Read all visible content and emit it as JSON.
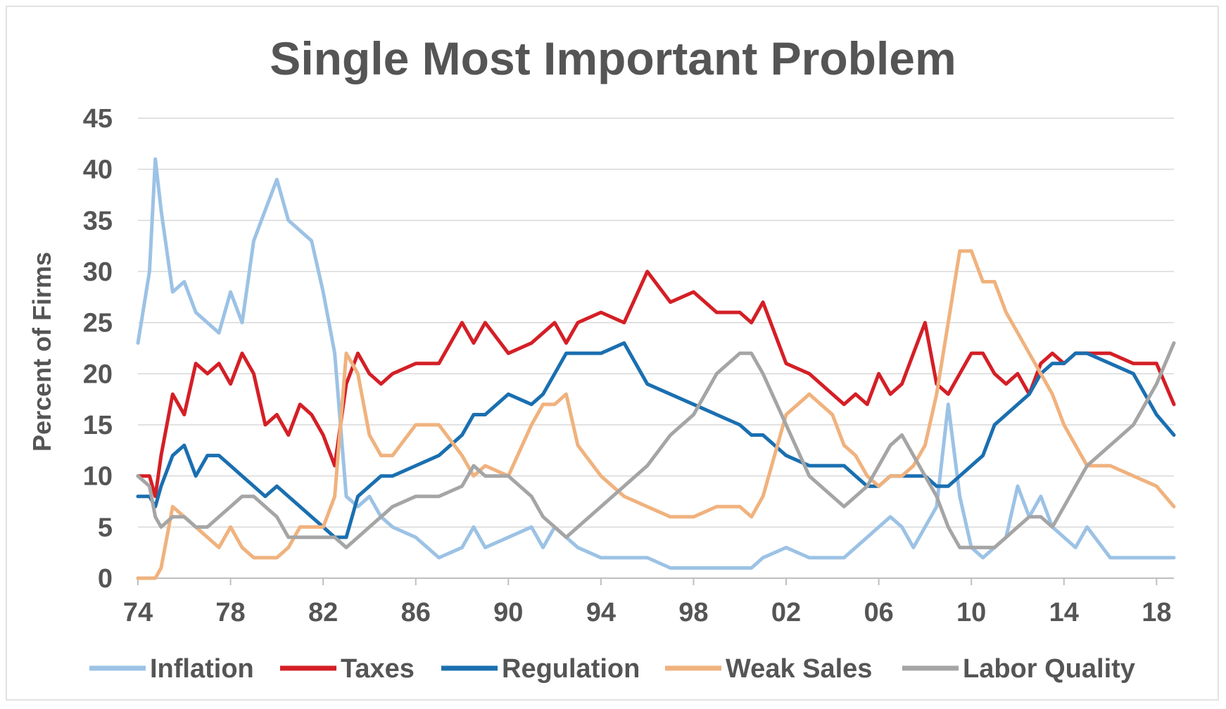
{
  "chart_data": {
    "type": "line",
    "title": "Single Most Important Problem",
    "xlabel": "",
    "ylabel": "Percent of Firms",
    "x_tick_labels": [
      "74",
      "78",
      "82",
      "86",
      "90",
      "94",
      "98",
      "02",
      "06",
      "10",
      "14",
      "18"
    ],
    "x_tick_years": [
      1974,
      1978,
      1982,
      1986,
      1990,
      1994,
      1998,
      2002,
      2006,
      2010,
      2014,
      2018
    ],
    "xlim": [
      1974,
      2018.75
    ],
    "ylim": [
      0,
      45
    ],
    "y_ticks": [
      0,
      5,
      10,
      15,
      20,
      25,
      30,
      35,
      40,
      45
    ],
    "grid": "horizontal",
    "legend_position": "bottom",
    "series": [
      {
        "name": "Inflation",
        "color": "#9cc2e5",
        "x": [
          1974,
          1974.5,
          1974.75,
          1975,
          1975.5,
          1976,
          1976.5,
          1977,
          1977.5,
          1978,
          1978.5,
          1979,
          1979.5,
          1980,
          1980.5,
          1981,
          1981.5,
          1982,
          1982.5,
          1983,
          1983.5,
          1984,
          1984.5,
          1985,
          1986,
          1987,
          1988,
          1988.5,
          1989,
          1990,
          1991,
          1991.5,
          1992,
          1992.5,
          1993,
          1994,
          1995,
          1996,
          1997,
          1998,
          1999,
          2000,
          2000.5,
          2001,
          2002,
          2003,
          2004,
          2004.5,
          2005,
          2005.5,
          2006,
          2006.5,
          2007,
          2007.5,
          2008,
          2008.5,
          2009,
          2009.5,
          2010,
          2010.5,
          2011,
          2011.5,
          2012,
          2012.5,
          2013,
          2013.5,
          2014,
          2014.5,
          2015,
          2016,
          2017,
          2018,
          2018.75
        ],
        "y": [
          23,
          30,
          41,
          36,
          28,
          29,
          26,
          25,
          24,
          28,
          25,
          33,
          36,
          39,
          35,
          34,
          33,
          28,
          22,
          8,
          7,
          8,
          6,
          5,
          4,
          2,
          3,
          5,
          3,
          4,
          5,
          3,
          5,
          4,
          3,
          2,
          2,
          2,
          1,
          1,
          1,
          1,
          1,
          2,
          3,
          2,
          2,
          2,
          3,
          4,
          5,
          6,
          5,
          3,
          5,
          7,
          17,
          8,
          3,
          2,
          3,
          4,
          9,
          6,
          8,
          5,
          4,
          3,
          5,
          2,
          2,
          2,
          2
        ]
      },
      {
        "name": "Taxes",
        "color": "#d41f26",
        "x": [
          1974,
          1974.5,
          1974.75,
          1975,
          1975.5,
          1976,
          1976.5,
          1977,
          1977.5,
          1978,
          1978.5,
          1979,
          1979.5,
          1980,
          1980.5,
          1981,
          1981.5,
          1982,
          1982.5,
          1983,
          1983.5,
          1984,
          1984.5,
          1985,
          1986,
          1987,
          1988,
          1988.5,
          1989,
          1990,
          1991,
          1991.5,
          1992,
          1992.5,
          1993,
          1994,
          1995,
          1996,
          1997,
          1998,
          1999,
          2000,
          2000.5,
          2001,
          2002,
          2003,
          2004,
          2004.5,
          2005,
          2005.5,
          2006,
          2006.5,
          2007,
          2007.5,
          2008,
          2008.5,
          2009,
          2009.5,
          2010,
          2010.5,
          2011,
          2011.5,
          2012,
          2012.5,
          2013,
          2013.5,
          2014,
          2014.5,
          2015,
          2016,
          2017,
          2018,
          2018.75
        ],
        "y": [
          10,
          10,
          8,
          12,
          18,
          16,
          21,
          20,
          21,
          19,
          22,
          20,
          15,
          16,
          14,
          17,
          16,
          14,
          11,
          19,
          22,
          20,
          19,
          20,
          21,
          21,
          25,
          23,
          25,
          22,
          23,
          24,
          25,
          23,
          25,
          26,
          25,
          30,
          27,
          28,
          26,
          26,
          25,
          27,
          21,
          20,
          18,
          17,
          18,
          17,
          20,
          18,
          19,
          22,
          25,
          19,
          18,
          20,
          22,
          22,
          20,
          19,
          20,
          18,
          21,
          22,
          21,
          22,
          22,
          22,
          21,
          21,
          17
        ]
      },
      {
        "name": "Regulation",
        "color": "#1a6fb0",
        "x": [
          1974,
          1974.5,
          1974.75,
          1975,
          1975.5,
          1976,
          1976.5,
          1977,
          1977.5,
          1978,
          1978.5,
          1979,
          1979.5,
          1980,
          1980.5,
          1981,
          1981.5,
          1982,
          1982.5,
          1983,
          1983.5,
          1984,
          1984.5,
          1985,
          1986,
          1987,
          1988,
          1988.5,
          1989,
          1990,
          1991,
          1991.5,
          1992,
          1992.5,
          1993,
          1994,
          1995,
          1996,
          1997,
          1998,
          1999,
          2000,
          2000.5,
          2001,
          2002,
          2003,
          2004,
          2004.5,
          2005,
          2005.5,
          2006,
          2006.5,
          2007,
          2007.5,
          2008,
          2008.5,
          2009,
          2009.5,
          2010,
          2010.5,
          2011,
          2011.5,
          2012,
          2012.5,
          2013,
          2013.5,
          2014,
          2014.5,
          2015,
          2016,
          2017,
          2018,
          2018.75
        ],
        "y": [
          8,
          8,
          7,
          9,
          12,
          13,
          10,
          12,
          12,
          11,
          10,
          9,
          8,
          9,
          8,
          7,
          6,
          5,
          4,
          4,
          8,
          9,
          10,
          10,
          11,
          12,
          14,
          16,
          16,
          18,
          17,
          18,
          20,
          22,
          22,
          22,
          23,
          19,
          18,
          17,
          16,
          15,
          14,
          14,
          12,
          11,
          11,
          11,
          10,
          9,
          9,
          10,
          10,
          10,
          10,
          9,
          9,
          10,
          11,
          12,
          15,
          16,
          17,
          18,
          20,
          21,
          21,
          22,
          22,
          21,
          20,
          16,
          14
        ]
      },
      {
        "name": "Weak Sales",
        "color": "#f0b27e",
        "x": [
          1974,
          1974.5,
          1974.75,
          1975,
          1975.5,
          1976,
          1976.5,
          1977,
          1977.5,
          1978,
          1978.5,
          1979,
          1979.5,
          1980,
          1980.5,
          1981,
          1981.5,
          1982,
          1982.5,
          1983,
          1983.5,
          1984,
          1984.5,
          1985,
          1986,
          1987,
          1988,
          1988.5,
          1989,
          1990,
          1991,
          1991.5,
          1992,
          1992.5,
          1993,
          1994,
          1995,
          1996,
          1997,
          1998,
          1999,
          2000,
          2000.5,
          2001,
          2002,
          2003,
          2004,
          2004.5,
          2005,
          2005.5,
          2006,
          2006.5,
          2007,
          2007.5,
          2008,
          2008.5,
          2009,
          2009.5,
          2010,
          2010.5,
          2011,
          2011.5,
          2012,
          2012.5,
          2013,
          2013.5,
          2014,
          2014.5,
          2015,
          2016,
          2017,
          2018,
          2018.75
        ],
        "y": [
          0,
          0,
          0,
          1,
          7,
          6,
          5,
          4,
          3,
          5,
          3,
          2,
          2,
          2,
          3,
          5,
          5,
          5,
          8,
          22,
          20,
          14,
          12,
          12,
          15,
          15,
          12,
          10,
          11,
          10,
          15,
          17,
          17,
          18,
          13,
          10,
          8,
          7,
          6,
          6,
          7,
          7,
          6,
          8,
          16,
          18,
          16,
          13,
          12,
          10,
          9,
          10,
          10,
          11,
          13,
          18,
          25,
          32,
          32,
          29,
          29,
          26,
          24,
          22,
          20,
          18,
          15,
          13,
          11,
          11,
          10,
          9,
          7
        ]
      },
      {
        "name": "Labor Quality",
        "color": "#a5a5a5",
        "x": [
          1974,
          1974.5,
          1974.75,
          1975,
          1975.5,
          1976,
          1976.5,
          1977,
          1977.5,
          1978,
          1978.5,
          1979,
          1979.5,
          1980,
          1980.5,
          1981,
          1981.5,
          1982,
          1982.5,
          1983,
          1983.5,
          1984,
          1984.5,
          1985,
          1986,
          1987,
          1988,
          1988.5,
          1989,
          1990,
          1991,
          1991.5,
          1992,
          1992.5,
          1993,
          1994,
          1995,
          1996,
          1997,
          1998,
          1999,
          2000,
          2000.5,
          2001,
          2002,
          2003,
          2004,
          2004.5,
          2005,
          2005.5,
          2006,
          2006.5,
          2007,
          2007.5,
          2008,
          2008.5,
          2009,
          2009.5,
          2010,
          2010.5,
          2011,
          2011.5,
          2012,
          2012.5,
          2013,
          2013.5,
          2014,
          2014.5,
          2015,
          2016,
          2017,
          2018,
          2018.75
        ],
        "y": [
          10,
          9,
          6,
          5,
          6,
          6,
          5,
          5,
          6,
          7,
          8,
          8,
          7,
          6,
          4,
          4,
          4,
          4,
          4,
          3,
          4,
          5,
          6,
          7,
          8,
          8,
          9,
          11,
          10,
          10,
          8,
          6,
          5,
          4,
          5,
          7,
          9,
          11,
          14,
          16,
          20,
          22,
          22,
          20,
          15,
          10,
          8,
          7,
          8,
          9,
          11,
          13,
          14,
          12,
          10,
          8,
          5,
          3,
          3,
          3,
          3,
          4,
          5,
          6,
          6,
          5,
          7,
          9,
          11,
          13,
          15,
          19,
          23
        ]
      }
    ]
  }
}
